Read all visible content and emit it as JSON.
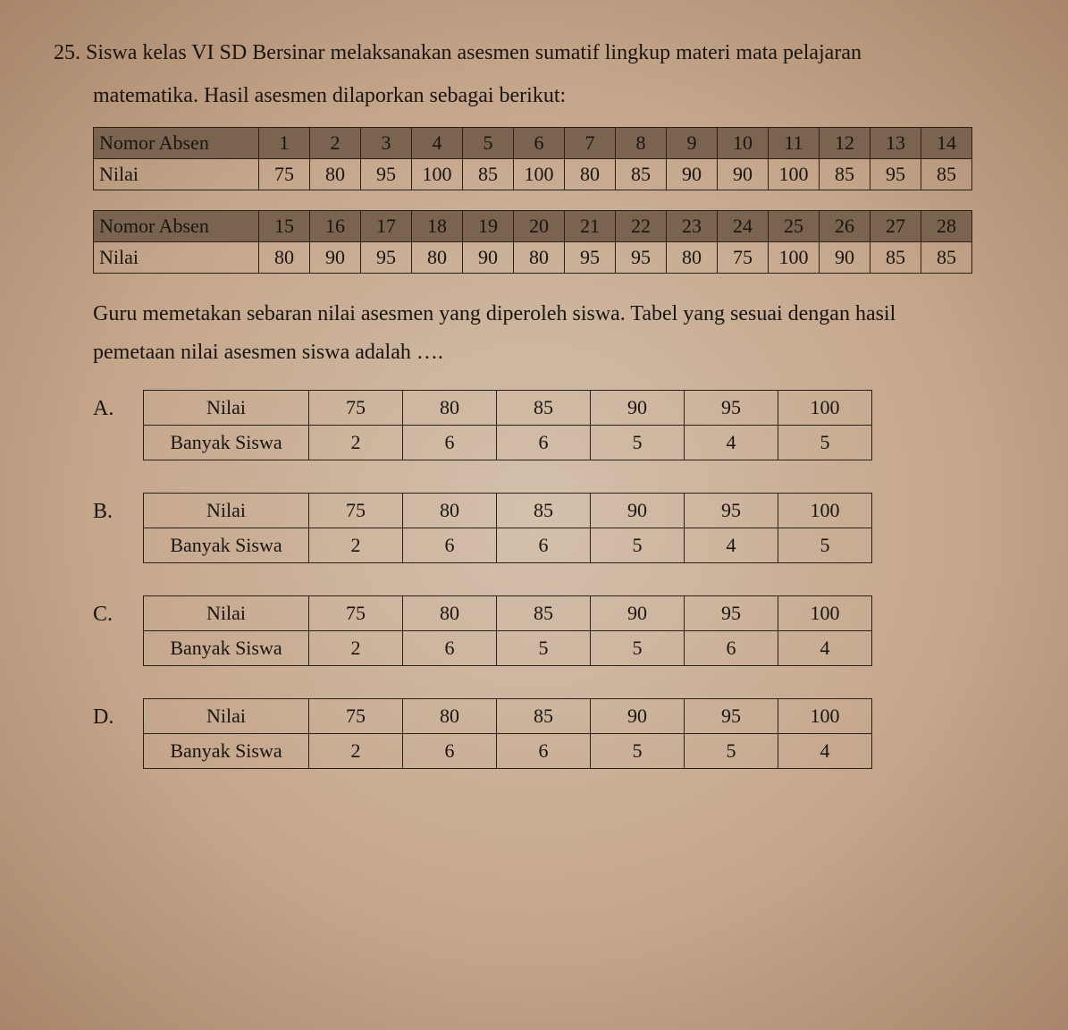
{
  "question": {
    "number": "25.",
    "line1": "Siswa kelas VI SD Bersinar melaksanakan asesmen sumatif lingkup materi mata pelajaran",
    "line2": "matematika. Hasil asesmen dilaporkan sebagai berikut:"
  },
  "source_table": {
    "row_header_label": "Nomor Absen",
    "row_data_label": "Nilai",
    "part1": {
      "absen": [
        "1",
        "2",
        "3",
        "4",
        "5",
        "6",
        "7",
        "8",
        "9",
        "10",
        "11",
        "12",
        "13",
        "14"
      ],
      "nilai": [
        "75",
        "80",
        "95",
        "100",
        "85",
        "100",
        "80",
        "85",
        "90",
        "90",
        "100",
        "85",
        "95",
        "85"
      ]
    },
    "part2": {
      "absen": [
        "15",
        "16",
        "17",
        "18",
        "19",
        "20",
        "21",
        "22",
        "23",
        "24",
        "25",
        "26",
        "27",
        "28"
      ],
      "nilai": [
        "80",
        "90",
        "95",
        "80",
        "90",
        "80",
        "95",
        "95",
        "80",
        "75",
        "100",
        "90",
        "85",
        "85"
      ]
    }
  },
  "middle": {
    "line1": "Guru memetakan sebaran nilai asesmen yang diperoleh siswa. Tabel yang sesuai dengan hasil",
    "line2": "pemetaan nilai asesmen siswa adalah …."
  },
  "option_labels": {
    "row1": "Nilai",
    "row2": "Banyak Siswa"
  },
  "options": {
    "A": {
      "letter": "A.",
      "nilai": [
        "75",
        "80",
        "85",
        "90",
        "95",
        "100"
      ],
      "banyak": [
        "2",
        "6",
        "6",
        "5",
        "4",
        "5"
      ]
    },
    "B": {
      "letter": "B.",
      "nilai": [
        "75",
        "80",
        "85",
        "90",
        "95",
        "100"
      ],
      "banyak": [
        "2",
        "6",
        "6",
        "5",
        "4",
        "5"
      ]
    },
    "C": {
      "letter": "C.",
      "nilai": [
        "75",
        "80",
        "85",
        "90",
        "95",
        "100"
      ],
      "banyak": [
        "2",
        "6",
        "5",
        "5",
        "6",
        "4"
      ]
    },
    "D": {
      "letter": "D.",
      "nilai": [
        "75",
        "80",
        "85",
        "90",
        "95",
        "100"
      ],
      "banyak": [
        "2",
        "6",
        "6",
        "5",
        "5",
        "4"
      ]
    }
  },
  "style": {
    "header_bg": "#7a6450",
    "border_color": "#2a2016",
    "page_bg_center": "#d4c0ac",
    "page_bg_edge": "#a8856a",
    "font_family": "Times New Roman",
    "base_font_size_pt": 18
  }
}
